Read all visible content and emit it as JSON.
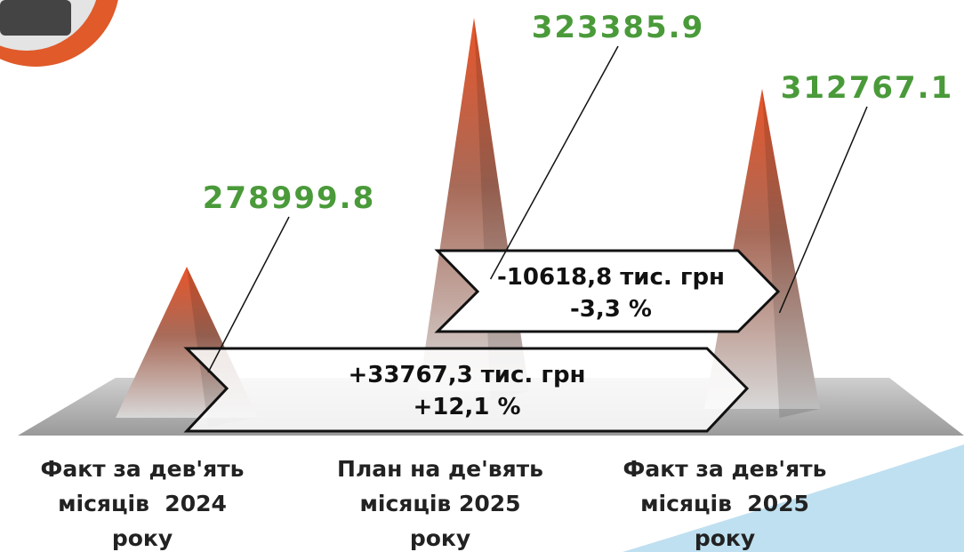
{
  "chart_data": {
    "type": "bar",
    "categories": [
      "Факт за дев'ять\nмісяців  2024\nроку",
      "План на де'вять\nмісяців 2025\nроку",
      "Факт за дев'ять\nмісяців  2025\nроку"
    ],
    "values": [
      278999.8,
      323385.9,
      312767.1
    ],
    "color": "#e8552a",
    "value_color": "#4a9a3a",
    "annotations": [
      {
        "lines": [
          "+33767,3 тис. грн",
          "+12,1 %"
        ]
      },
      {
        "lines": [
          "-10618,8 тис. грн",
          "-3,3 %"
        ]
      }
    ]
  }
}
